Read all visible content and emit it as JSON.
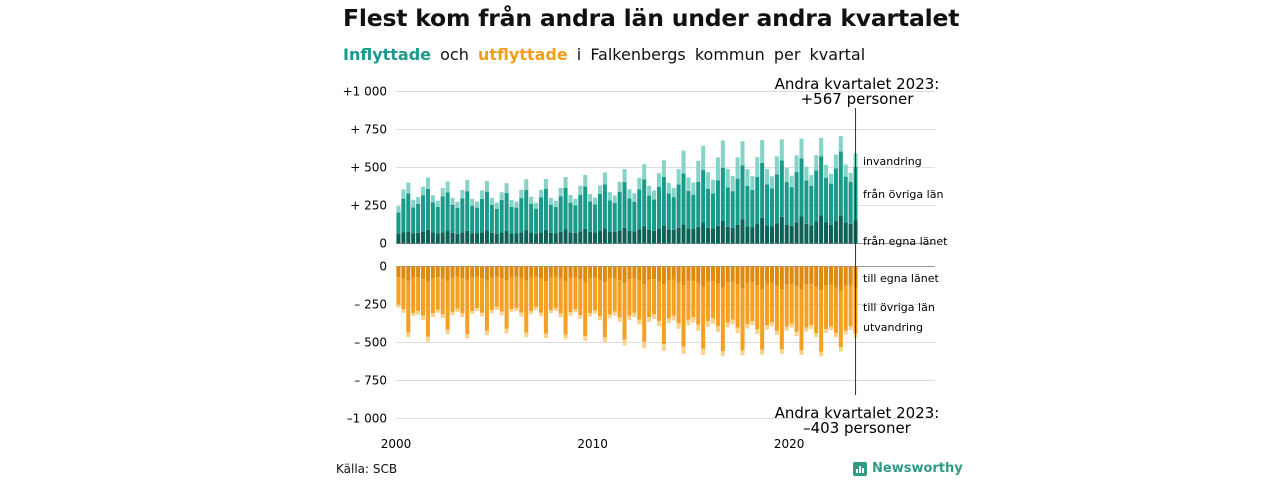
{
  "title": "Flest kom från andra län under andra kvartalet",
  "subtitle": {
    "in_word": "Inflyttade",
    "and_word": "och",
    "out_word": "utflyttade",
    "rest": "i Falkenbergs kommun per kvartal"
  },
  "source": "Källa: SCB",
  "brand": "Newsworthy",
  "colors": {
    "in_dark": "#0e6157",
    "in_mid": "#1a9a8b",
    "in_light": "#86d3c7",
    "out_dark": "#dd8a0f",
    "out_mid": "#f4a023",
    "out_light": "#f9d38e",
    "grid": "#dddddd"
  },
  "chart_data": {
    "type": "bar",
    "x": {
      "start_year": 2000,
      "end_year": 2023,
      "quarters_per_year": 4,
      "last_quarter": 2
    },
    "xticks": [
      {
        "year": 2000,
        "label": "2000"
      },
      {
        "year": 2010,
        "label": "2010"
      },
      {
        "year": 2020,
        "label": "2020"
      }
    ],
    "upper": {
      "ylim": [
        0,
        1000
      ],
      "ticks": [
        {
          "value": 0,
          "label": "0"
        },
        {
          "value": 250,
          "label": "+  250"
        },
        {
          "value": 500,
          "label": "+  500"
        },
        {
          "value": 750,
          "label": "+  750"
        },
        {
          "value": 1000,
          "label": "+1 000"
        }
      ],
      "annotation_line1": "Andra kvartalet 2023:",
      "annotation_line2": "+567 personer",
      "series_labels": [
        "invandring",
        "från övriga län",
        "från egna länet"
      ],
      "latest": {
        "egna_lanet": 165,
        "ovriga_lan": 355,
        "invandring": 47
      }
    },
    "lower": {
      "ylim": [
        -1000,
        0
      ],
      "ticks": [
        {
          "value": 0,
          "label": "0"
        },
        {
          "value": -250,
          "label": "–  250"
        },
        {
          "value": -500,
          "label": "–  500"
        },
        {
          "value": -750,
          "label": "–  750"
        },
        {
          "value": -1000,
          "label": "–1 000"
        }
      ],
      "annotation_line1": "Andra kvartalet 2023:",
      "annotation_line2": "–403 personer",
      "series_labels": [
        "till egna länet",
        "till övriga län",
        "utvandring"
      ],
      "latest": {
        "egna_lanet": -140,
        "ovriga_lan": -230,
        "utvandring": -33
      }
    },
    "series_upper": [
      {
        "name": "från egna länet",
        "values": [
          65,
          75,
          80,
          68,
          70,
          78,
          90,
          72,
          66,
          74,
          82,
          70,
          64,
          72,
          84,
          68,
          66,
          74,
          86,
          70,
          64,
          72,
          82,
          66,
          66,
          74,
          88,
          72,
          64,
          74,
          90,
          70,
          66,
          76,
          92,
          74,
          70,
          80,
          96,
          76,
          72,
          82,
          98,
          78,
          76,
          86,
          104,
          82,
          80,
          92,
          112,
          90,
          84,
          98,
          118,
          94,
          90,
          104,
          126,
          100,
          96,
          110,
          138,
          104,
          100,
          116,
          148,
          110,
          104,
          122,
          158,
          114,
          108,
          128,
          170,
          120,
          112,
          134,
          176,
          124,
          116,
          140,
          180,
          130,
          120,
          146,
          184,
          138,
          124,
          150,
          186,
          140,
          130,
          154,
          180,
          165
        ]
      },
      {
        "name": "från övriga län",
        "values": [
          140,
          220,
          250,
          170,
          190,
          240,
          270,
          200,
          175,
          235,
          255,
          185,
          170,
          225,
          260,
          180,
          170,
          220,
          255,
          185,
          165,
          215,
          250,
          175,
          170,
          225,
          265,
          190,
          165,
          230,
          270,
          185,
          175,
          235,
          275,
          195,
          180,
          240,
          280,
          200,
          185,
          245,
          290,
          205,
          190,
          255,
          300,
          215,
          195,
          265,
          310,
          225,
          205,
          275,
          320,
          235,
          215,
          285,
          335,
          245,
          225,
          295,
          345,
          255,
          230,
          300,
          350,
          260,
          240,
          305,
          355,
          265,
          245,
          310,
          360,
          270,
          250,
          320,
          370,
          280,
          255,
          330,
          380,
          285,
          260,
          335,
          390,
          295,
          270,
          345,
          420,
          300,
          275,
          350,
          230,
          355
        ]
      },
      {
        "name": "invandring",
        "values": [
          40,
          60,
          70,
          50,
          45,
          55,
          75,
          45,
          40,
          55,
          70,
          45,
          40,
          55,
          75,
          45,
          40,
          55,
          70,
          45,
          40,
          50,
          65,
          45,
          40,
          55,
          70,
          45,
          40,
          50,
          65,
          45,
          40,
          55,
          70,
          50,
          45,
          60,
          75,
          50,
          45,
          55,
          80,
          55,
          50,
          65,
          85,
          60,
          55,
          75,
          100,
          65,
          60,
          90,
          110,
          70,
          60,
          100,
          150,
          90,
          80,
          140,
          160,
          110,
          90,
          150,
          180,
          120,
          100,
          140,
          160,
          110,
          90,
          130,
          150,
          100,
          80,
          120,
          140,
          95,
          75,
          110,
          130,
          90,
          70,
          100,
          120,
          85,
          65,
          90,
          100,
          80,
          60,
          90,
          50,
          47
        ]
      }
    ],
    "series_lower": [
      {
        "name": "till egna länet",
        "values": [
          -70,
          -80,
          -95,
          -75,
          -72,
          -82,
          -100,
          -78,
          -70,
          -80,
          -96,
          -74,
          -68,
          -78,
          -94,
          -72,
          -68,
          -78,
          -92,
          -72,
          -66,
          -76,
          -90,
          -70,
          -68,
          -78,
          -94,
          -74,
          -66,
          -78,
          -96,
          -72,
          -68,
          -80,
          -98,
          -76,
          -72,
          -84,
          -102,
          -78,
          -74,
          -86,
          -104,
          -80,
          -78,
          -90,
          -110,
          -84,
          -80,
          -94,
          -116,
          -88,
          -84,
          -98,
          -120,
          -92,
          -88,
          -102,
          -126,
          -96,
          -92,
          -108,
          -132,
          -100,
          -96,
          -112,
          -138,
          -104,
          -100,
          -118,
          -144,
          -108,
          -104,
          -122,
          -148,
          -112,
          -108,
          -126,
          -150,
          -116,
          -112,
          -130,
          -152,
          -118,
          -116,
          -134,
          -156,
          -122,
          -120,
          -138,
          -160,
          -126,
          -124,
          -140,
          -150,
          -140
        ]
      },
      {
        "name": "till övriga län",
        "values": [
          -180,
          -200,
          -340,
          -230,
          -220,
          -240,
          -360,
          -230,
          -215,
          -235,
          -320,
          -225,
          -210,
          -230,
          -350,
          -220,
          -205,
          -225,
          -330,
          -215,
          -200,
          -220,
          -320,
          -210,
          -205,
          -225,
          -340,
          -220,
          -200,
          -225,
          -345,
          -215,
          -205,
          -230,
          -350,
          -225,
          -210,
          -235,
          -355,
          -230,
          -215,
          -240,
          -360,
          -235,
          -220,
          -245,
          -370,
          -240,
          -225,
          -255,
          -380,
          -245,
          -230,
          -260,
          -390,
          -250,
          -235,
          -270,
          -400,
          -255,
          -240,
          -275,
          -410,
          -260,
          -245,
          -280,
          -420,
          -265,
          -250,
          -285,
          -410,
          -270,
          -255,
          -290,
          -400,
          -275,
          -260,
          -295,
          -395,
          -280,
          -265,
          -300,
          -400,
          -285,
          -270,
          -305,
          -405,
          -290,
          -275,
          -300,
          -370,
          -295,
          -270,
          -300,
          -280,
          -230
        ]
      },
      {
        "name": "utvandring",
        "values": [
          -20,
          -25,
          -30,
          -20,
          -25,
          -30,
          -35,
          -25,
          -20,
          -25,
          -30,
          -20,
          -20,
          -25,
          -30,
          -20,
          -20,
          -25,
          -30,
          -20,
          -20,
          -25,
          -30,
          -20,
          -20,
          -25,
          -30,
          -20,
          -20,
          -25,
          -30,
          -20,
          -20,
          -25,
          -30,
          -22,
          -20,
          -25,
          -32,
          -22,
          -22,
          -28,
          -35,
          -25,
          -25,
          -30,
          -40,
          -28,
          -28,
          -32,
          -42,
          -30,
          -30,
          -35,
          -45,
          -32,
          -32,
          -38,
          -50,
          -35,
          -35,
          -40,
          -40,
          -35,
          -35,
          -40,
          -30,
          -32,
          -30,
          -35,
          -30,
          -30,
          -28,
          -32,
          -30,
          -28,
          -26,
          -30,
          -30,
          -26,
          -24,
          -28,
          -30,
          -25,
          -24,
          -28,
          -30,
          -25,
          -24,
          -28,
          -30,
          -26,
          -24,
          -28,
          -30,
          -33
        ]
      }
    ]
  }
}
